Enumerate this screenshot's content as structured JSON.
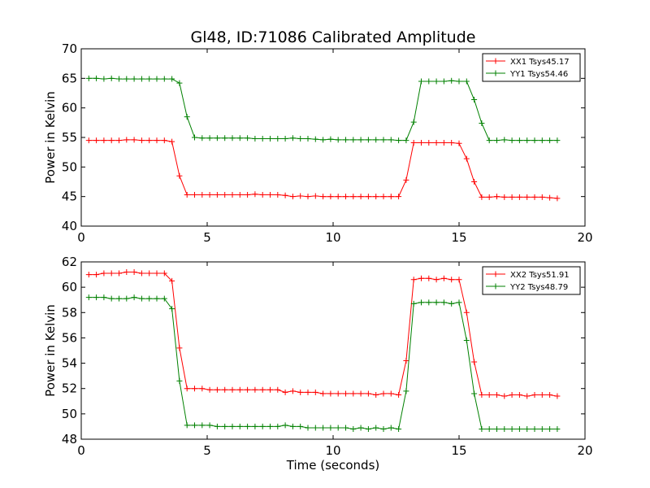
{
  "chart_data": {
    "title": "Gl48, ID:71086 Calibrated Amplitude",
    "panels": [
      {
        "type": "line",
        "ylabel": "Power in Kelvin",
        "xlabel": "",
        "xlim": [
          0,
          20
        ],
        "ylim": [
          40,
          70
        ],
        "xticks": [
          0,
          5,
          10,
          15,
          20
        ],
        "yticks": [
          40,
          45,
          50,
          55,
          60,
          65,
          70
        ],
        "legend_position": "top-right",
        "x": [
          0.3,
          0.6,
          0.9,
          1.2,
          1.5,
          1.8,
          2.1,
          2.4,
          2.7,
          3.0,
          3.3,
          3.6,
          3.9,
          4.2,
          4.5,
          4.8,
          5.1,
          5.4,
          5.7,
          6.0,
          6.3,
          6.6,
          6.9,
          7.2,
          7.5,
          7.8,
          8.1,
          8.4,
          8.7,
          9.0,
          9.3,
          9.6,
          9.9,
          10.2,
          10.5,
          10.8,
          11.1,
          11.4,
          11.7,
          12.0,
          12.3,
          12.6,
          12.9,
          13.2,
          13.5,
          13.8,
          14.1,
          14.4,
          14.7,
          15.0,
          15.3,
          15.6,
          15.9,
          16.2,
          16.5,
          16.8,
          17.1,
          17.4,
          17.7,
          18.0,
          18.3,
          18.6,
          18.9
        ],
        "series": [
          {
            "name": "XX1 Tsys45.17",
            "color": "#ff0000",
            "values": [
              54.5,
              54.5,
              54.5,
              54.5,
              54.5,
              54.6,
              54.6,
              54.5,
              54.5,
              54.5,
              54.5,
              54.3,
              48.5,
              45.3,
              45.3,
              45.3,
              45.3,
              45.3,
              45.3,
              45.3,
              45.3,
              45.3,
              45.4,
              45.3,
              45.3,
              45.3,
              45.2,
              45.0,
              45.1,
              45.0,
              45.1,
              45.0,
              45.0,
              45.0,
              45.0,
              45.0,
              45.0,
              45.0,
              45.0,
              45.0,
              45.0,
              45.0,
              47.8,
              54.1,
              54.1,
              54.1,
              54.1,
              54.1,
              54.1,
              54.0,
              51.4,
              47.5,
              44.9,
              44.9,
              45.0,
              44.9,
              44.9,
              44.9,
              44.9,
              44.9,
              44.9,
              44.8,
              44.7
            ]
          },
          {
            "name": "YY1 Tsys54.46",
            "color": "#008000",
            "values": [
              65.0,
              65.0,
              64.9,
              65.0,
              64.9,
              64.9,
              64.9,
              64.9,
              64.9,
              64.9,
              64.9,
              64.9,
              64.2,
              58.5,
              55.0,
              54.9,
              54.9,
              54.9,
              54.9,
              54.9,
              54.9,
              54.9,
              54.8,
              54.8,
              54.8,
              54.8,
              54.8,
              54.9,
              54.8,
              54.8,
              54.7,
              54.6,
              54.7,
              54.6,
              54.6,
              54.6,
              54.6,
              54.6,
              54.6,
              54.6,
              54.6,
              54.5,
              54.5,
              57.6,
              64.5,
              64.5,
              64.5,
              64.5,
              64.6,
              64.5,
              64.5,
              61.4,
              57.4,
              54.5,
              54.5,
              54.6,
              54.5,
              54.5,
              54.5,
              54.5,
              54.5,
              54.5,
              54.5
            ]
          }
        ]
      },
      {
        "type": "line",
        "ylabel": "Power in Kelvin",
        "xlabel": "Time (seconds)",
        "xlim": [
          0,
          20
        ],
        "ylim": [
          48,
          62
        ],
        "xticks": [
          0,
          5,
          10,
          15,
          20
        ],
        "yticks": [
          48,
          50,
          52,
          54,
          56,
          58,
          60,
          62
        ],
        "legend_position": "top-right",
        "x": [
          0.3,
          0.6,
          0.9,
          1.2,
          1.5,
          1.8,
          2.1,
          2.4,
          2.7,
          3.0,
          3.3,
          3.6,
          3.9,
          4.2,
          4.5,
          4.8,
          5.1,
          5.4,
          5.7,
          6.0,
          6.3,
          6.6,
          6.9,
          7.2,
          7.5,
          7.8,
          8.1,
          8.4,
          8.7,
          9.0,
          9.3,
          9.6,
          9.9,
          10.2,
          10.5,
          10.8,
          11.1,
          11.4,
          11.7,
          12.0,
          12.3,
          12.6,
          12.9,
          13.2,
          13.5,
          13.8,
          14.1,
          14.4,
          14.7,
          15.0,
          15.3,
          15.6,
          15.9,
          16.2,
          16.5,
          16.8,
          17.1,
          17.4,
          17.7,
          18.0,
          18.3,
          18.6,
          18.9
        ],
        "series": [
          {
            "name": "XX2 Tsys51.91",
            "color": "#ff0000",
            "values": [
              61.0,
              61.0,
              61.1,
              61.1,
              61.1,
              61.2,
              61.2,
              61.1,
              61.1,
              61.1,
              61.1,
              60.5,
              55.2,
              52.0,
              52.0,
              52.0,
              51.9,
              51.9,
              51.9,
              51.9,
              51.9,
              51.9,
              51.9,
              51.9,
              51.9,
              51.9,
              51.7,
              51.8,
              51.7,
              51.7,
              51.7,
              51.6,
              51.6,
              51.6,
              51.6,
              51.6,
              51.6,
              51.6,
              51.5,
              51.6,
              51.6,
              51.5,
              54.2,
              60.6,
              60.7,
              60.7,
              60.6,
              60.7,
              60.6,
              60.6,
              58.0,
              54.1,
              51.5,
              51.5,
              51.5,
              51.4,
              51.5,
              51.5,
              51.4,
              51.5,
              51.5,
              51.5,
              51.4
            ]
          },
          {
            "name": "YY2 Tsys48.79",
            "color": "#008000",
            "values": [
              59.2,
              59.2,
              59.2,
              59.1,
              59.1,
              59.1,
              59.2,
              59.1,
              59.1,
              59.1,
              59.1,
              58.3,
              52.6,
              49.1,
              49.1,
              49.1,
              49.1,
              49.0,
              49.0,
              49.0,
              49.0,
              49.0,
              49.0,
              49.0,
              49.0,
              49.0,
              49.1,
              49.0,
              49.0,
              48.9,
              48.9,
              48.9,
              48.9,
              48.9,
              48.9,
              48.8,
              48.9,
              48.8,
              48.9,
              48.8,
              48.9,
              48.8,
              51.8,
              58.7,
              58.8,
              58.8,
              58.8,
              58.8,
              58.7,
              58.8,
              55.8,
              51.6,
              48.8,
              48.8,
              48.8,
              48.8,
              48.8,
              48.8,
              48.8,
              48.8,
              48.8,
              48.8,
              48.8
            ]
          }
        ]
      }
    ]
  }
}
